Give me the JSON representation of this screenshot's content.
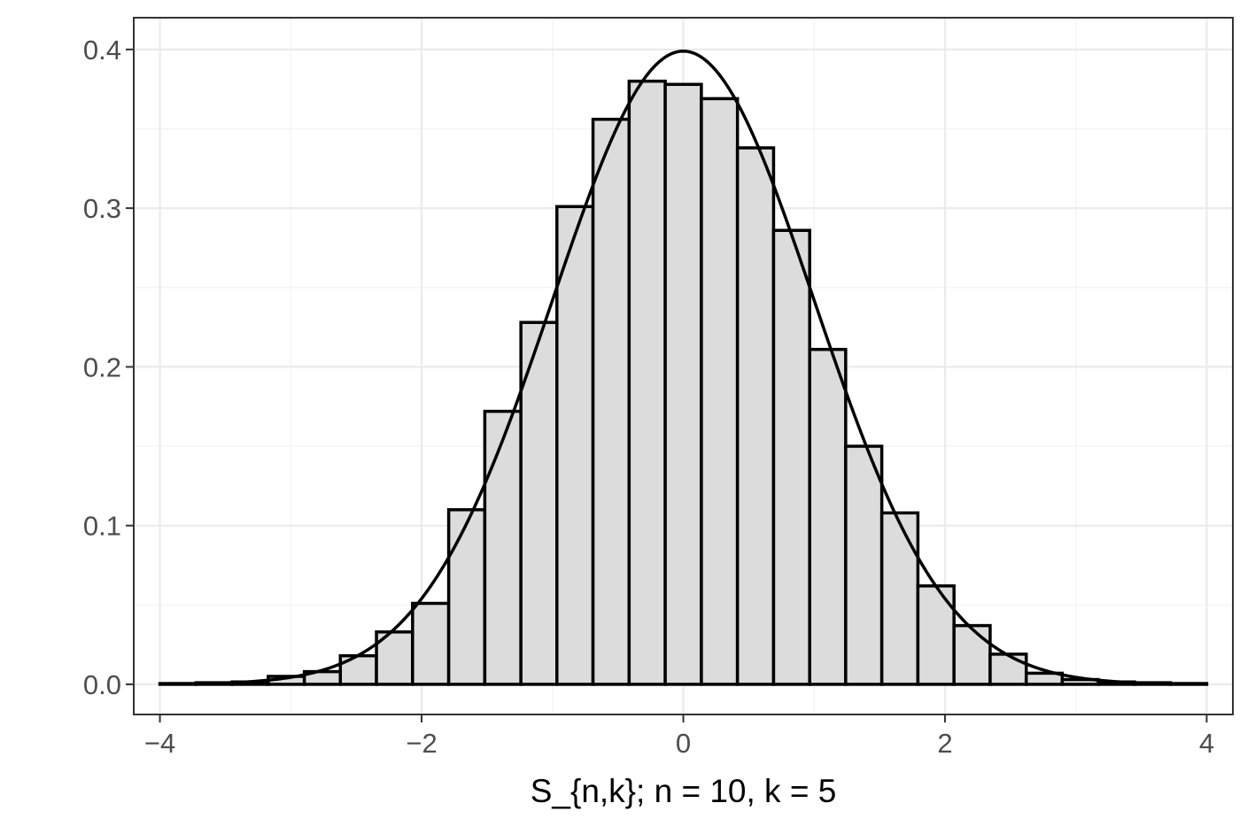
{
  "chart_data": {
    "type": "histogram",
    "title": "",
    "xlabel": "S_{n,k}; n = 10, k = 5",
    "ylabel": "",
    "xlim": [
      -4.2,
      4.2
    ],
    "ylim": [
      -0.019,
      0.42
    ],
    "x_ticks": [
      -4,
      -2,
      0,
      2,
      4
    ],
    "x_tick_labels": [
      "−4",
      "−2",
      "0",
      "2",
      "4"
    ],
    "y_ticks": [
      0.0,
      0.1,
      0.2,
      0.3,
      0.4
    ],
    "y_tick_labels": [
      "0.0",
      "0.1",
      "0.2",
      "0.3",
      "0.4"
    ],
    "x_minor_ticks": [
      -3,
      -1,
      1,
      3
    ],
    "y_minor_ticks": [
      0.05,
      0.15,
      0.25,
      0.35
    ],
    "grid": true,
    "bins": {
      "edges": [
        -4.0,
        -3.724,
        -3.448,
        -3.172,
        -2.896,
        -2.621,
        -2.345,
        -2.069,
        -1.793,
        -1.517,
        -1.241,
        -0.966,
        -0.69,
        -0.414,
        -0.138,
        0.138,
        0.414,
        0.69,
        0.966,
        1.241,
        1.517,
        1.793,
        2.069,
        2.345,
        2.621,
        2.896,
        3.172,
        3.448,
        3.724,
        4.0
      ],
      "density": [
        0.0005,
        0.001,
        0.0015,
        0.005,
        0.008,
        0.018,
        0.033,
        0.051,
        0.11,
        0.172,
        0.228,
        0.301,
        0.356,
        0.38,
        0.378,
        0.369,
        0.338,
        0.286,
        0.211,
        0.15,
        0.108,
        0.062,
        0.037,
        0.019,
        0.007,
        0.003,
        0.0015,
        0.001,
        0.0005
      ]
    },
    "overlay": {
      "type": "line",
      "label": "standard normal density",
      "x_range": [
        -4,
        4
      ],
      "mean": 0,
      "sd": 1
    },
    "colors": {
      "bar_fill": "#dcdcdc",
      "bar_outline": "#000000",
      "curve": "#000000",
      "grid": "#ebebeb",
      "panel_border": "#333333",
      "tick_text": "#4d4d4d"
    }
  }
}
